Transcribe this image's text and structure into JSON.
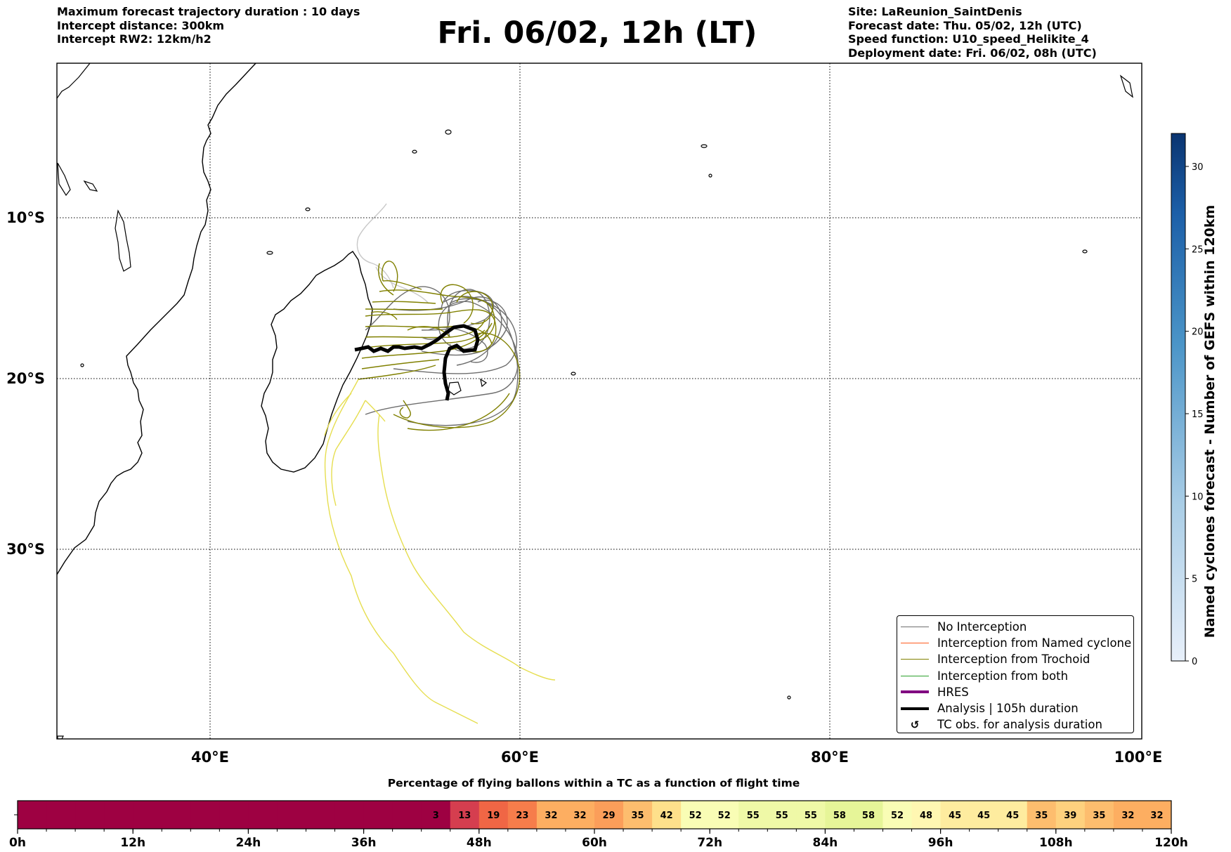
{
  "header_left": [
    "Maximum forecast trajectory duration : 10 days",
    "Intercept distance: 300km",
    "Intercept RW2: 12km/h2"
  ],
  "title": "Fri. 06/02, 12h (LT)",
  "header_right": [
    "Site: LaReunion_SaintDenis",
    "Forecast date: Thu. 05/02, 12h (UTC)",
    "Speed function: U10_speed_Helikite_4",
    "Deployment date: Fri. 06/02, 08h (UTC)"
  ],
  "colors": {
    "no_interception": "#6e6e6e",
    "named_cyclone": "#ff5a1e",
    "trochoid": "#808000",
    "both": "#2ca02c",
    "hres": "#800080",
    "analysis": "#000000",
    "late_trajectories": "#e6de50"
  },
  "chart_data": [
    {
      "type": "map",
      "title": "Fri. 06/02, 12h (LT)",
      "xlabel": "",
      "ylabel": "",
      "xlim": [
        30,
        100
      ],
      "ylim": [
        -41,
        0
      ],
      "x_ticks": [
        "40°E",
        "60°E",
        "80°E",
        "100°E"
      ],
      "x_tick_values": [
        40,
        60,
        80,
        100
      ],
      "y_ticks": [
        "10°S",
        "20°S",
        "30°S"
      ],
      "y_tick_values": [
        -10,
        -20,
        -30
      ],
      "grid": true,
      "legend": [
        {
          "label": "No Interception",
          "color": "#6e6e6e",
          "style": "thin"
        },
        {
          "label": "Interception from Named cyclone",
          "color": "#ff5a1e",
          "style": "thin"
        },
        {
          "label": "Interception from Trochoid",
          "color": "#808000",
          "style": "thin"
        },
        {
          "label": "Interception from both",
          "color": "#2ca02c",
          "style": "thin"
        },
        {
          "label": "HRES",
          "color": "#800080",
          "style": "thick"
        },
        {
          "label": "Analysis | 105h duration",
          "color": "#000000",
          "style": "thick"
        },
        {
          "label": "TC obs. for analysis duration",
          "color": "#000000",
          "style": "marker"
        }
      ],
      "legend_position": "lower-right",
      "analysis_track": [
        [
          49.5,
          -18.1
        ],
        [
          50.2,
          -18.2
        ],
        [
          50.8,
          -18.0
        ],
        [
          51.3,
          -18.5
        ],
        [
          51.9,
          -18.3
        ],
        [
          52.6,
          -18.0
        ],
        [
          53.2,
          -18.1
        ],
        [
          53.9,
          -17.9
        ],
        [
          54.5,
          -18.2
        ],
        [
          55.2,
          -18.0
        ],
        [
          56.0,
          -17.5
        ],
        [
          56.7,
          -17.4
        ],
        [
          57.2,
          -17.9
        ],
        [
          56.8,
          -18.4
        ],
        [
          56.0,
          -18.3
        ],
        [
          55.5,
          -18.8
        ],
        [
          55.4,
          -19.6
        ],
        [
          55.5,
          -20.8
        ]
      ],
      "colorbar": {
        "label": "Named cyclones forecast - Number of GEFS within 120km",
        "ticks": [
          0,
          5,
          10,
          15,
          20,
          25,
          30
        ],
        "range": [
          0,
          32
        ]
      }
    },
    {
      "type": "heatmap",
      "title": "Percentage of flying ballons within a TC as a function of flight time",
      "x_ticks": [
        "0h",
        "12h",
        "24h",
        "36h",
        "48h",
        "60h",
        "72h",
        "84h",
        "96h",
        "108h",
        "120h"
      ],
      "x_tick_values": [
        0,
        12,
        24,
        36,
        48,
        60,
        72,
        84,
        96,
        108,
        120
      ],
      "bin_hours": 3,
      "values": [
        0,
        0,
        0,
        0,
        0,
        0,
        0,
        0,
        0,
        0,
        0,
        0,
        0,
        0,
        3,
        13,
        19,
        23,
        32,
        32,
        29,
        35,
        42,
        52,
        52,
        55,
        55,
        55,
        58,
        58,
        52,
        48,
        45,
        45,
        45,
        35,
        39,
        35,
        32,
        32
      ],
      "labels": [
        "",
        "",
        "",
        "",
        "",
        "",
        "",
        "",
        "",
        "",
        "",
        "",
        "",
        "",
        "3",
        "13",
        "19",
        "23",
        "32",
        "32",
        "29",
        "35",
        "42",
        "52",
        "52",
        "55",
        "55",
        "55",
        "58",
        "58",
        "52",
        "48",
        "45",
        "45",
        "45",
        "35",
        "39",
        "35",
        "32",
        "32"
      ]
    }
  ]
}
